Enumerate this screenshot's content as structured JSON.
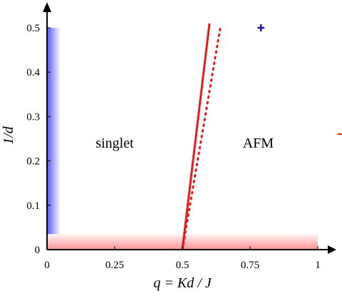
{
  "chart_data": {
    "type": "line",
    "title": "",
    "xlabel": "q = Kd / J",
    "ylabel": "1/d",
    "xlim": [
      0,
      1
    ],
    "ylim": [
      0,
      0.5
    ],
    "x_ticks": [
      0,
      0.25,
      0.5,
      0.75,
      1
    ],
    "x_tick_labels": [
      "0",
      "0.25",
      "0.5",
      "0.75",
      "1"
    ],
    "y_ticks": [
      0,
      0.1,
      0.2,
      0.3,
      0.4,
      0.5
    ],
    "y_tick_labels": [
      "0",
      "0.1",
      "0.2",
      "0.3",
      "0.4",
      "0.5"
    ],
    "grid": false,
    "regions": [
      {
        "label": "singlet",
        "x": 0.25,
        "y": 0.23
      },
      {
        "label": "AFM",
        "x": 0.78,
        "y": 0.23
      }
    ],
    "series": [
      {
        "style": "solid",
        "color": "#e8191c",
        "x": [
          0.5,
          0.6
        ],
        "y": [
          0.0,
          0.51
        ]
      },
      {
        "style": "dotted",
        "color": "#e8191c",
        "x": [
          0.5,
          0.64
        ],
        "y": [
          0.0,
          0.5
        ]
      },
      {
        "style": "marker-plus",
        "color": "#1a1aa8",
        "x": [
          0.79
        ],
        "y": [
          0.5
        ]
      }
    ],
    "shaded_bands": [
      {
        "axis": "y",
        "color": "#3a3aff",
        "x_range": [
          0.0,
          0.05
        ],
        "y_range": [
          0.035,
          0.5
        ]
      },
      {
        "axis": "x",
        "color": "#ff4a4a",
        "x_range": [
          0.0,
          1.0
        ],
        "y_range": [
          0.0,
          0.035
        ]
      }
    ]
  }
}
